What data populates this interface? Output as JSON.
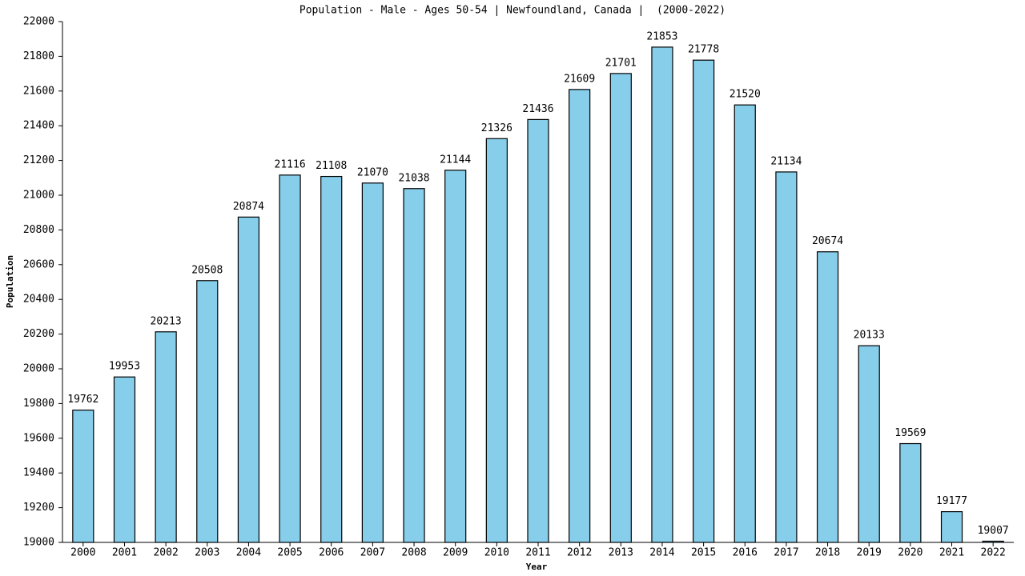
{
  "chart_data": {
    "type": "bar",
    "title": "Population - Male - Ages 50-54 | Newfoundland, Canada |  (2000-2022)",
    "x_label": "Year",
    "y_label": "Population",
    "categories": [
      "2000",
      "2001",
      "2002",
      "2003",
      "2004",
      "2005",
      "2006",
      "2007",
      "2008",
      "2009",
      "2010",
      "2011",
      "2012",
      "2013",
      "2014",
      "2015",
      "2016",
      "2017",
      "2018",
      "2019",
      "2020",
      "2021",
      "2022"
    ],
    "values": [
      19762,
      19953,
      20213,
      20508,
      20874,
      21116,
      21108,
      21070,
      21038,
      21144,
      21326,
      21436,
      21609,
      21701,
      21853,
      21778,
      21520,
      21134,
      20674,
      20133,
      19569,
      19177,
      19007
    ],
    "color": "#87ceeb",
    "ylim": [
      19000,
      22000
    ],
    "yticks": [
      19000,
      19200,
      19400,
      19600,
      19800,
      20000,
      20200,
      20400,
      20600,
      20800,
      21000,
      21200,
      21400,
      21600,
      21800,
      22000
    ]
  }
}
